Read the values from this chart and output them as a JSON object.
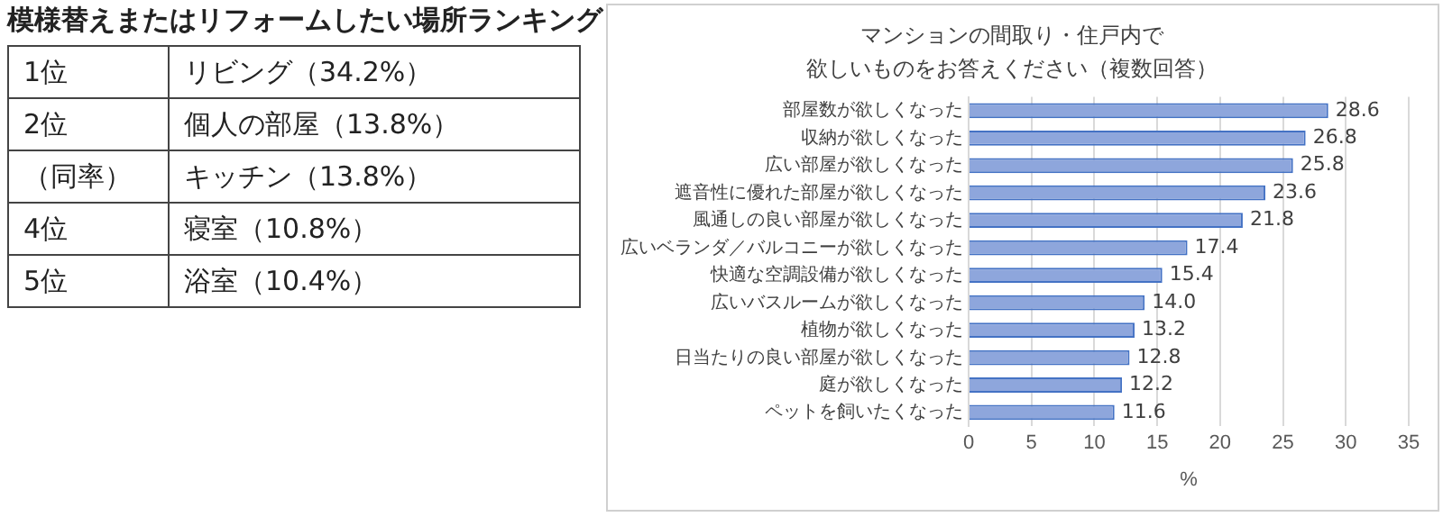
{
  "chart_data": [
    {
      "type": "other",
      "title": "模様替えまたはリフォームしたい場所ランキング",
      "annotations": [
        "1位",
        "リビング（34.2%）",
        "2位",
        "個人の部屋（13.8%）",
        "（同率）",
        "キッチン（13.8%）",
        "4位",
        "寝室（10.8%）",
        "5位",
        "浴室（10.4%）"
      ]
    },
    {
      "type": "bar",
      "orientation": "horizontal",
      "title": "マンションの間取り・住戸内で",
      "subtitle": "欲しいものをお答えください（複数回答）",
      "xlabel": "%",
      "categories": [
        "部屋数が欲しくなった",
        "収納が欲しくなった",
        "広い部屋が欲しくなった",
        "遮音性に優れた部屋が欲しくなった",
        "風通しの良い部屋が欲しくなった",
        "広いベランダ／バルコニーが欲しくなった",
        "快適な空調設備が欲しくなった",
        "広いバスルームが欲しくなった",
        "植物が欲しくなった",
        "日当たりの良い部屋が欲しくなった",
        "庭が欲しくなった",
        "ペットを飼いたくなった"
      ],
      "values": [
        28.6,
        26.8,
        25.8,
        23.6,
        21.8,
        17.4,
        15.4,
        14.0,
        13.2,
        12.8,
        12.2,
        11.6
      ],
      "value_labels": [
        "28.6",
        "26.8",
        "25.8",
        "23.6",
        "21.8",
        "17.4",
        "15.4",
        "14.0",
        "13.2",
        "12.8",
        "12.2",
        "11.6"
      ],
      "color": "#8ea6dc",
      "xlim": [
        0,
        35
      ],
      "xticks": [
        0,
        5,
        10,
        15,
        20,
        25,
        30,
        35
      ],
      "grid": "x",
      "legend": false
    }
  ]
}
